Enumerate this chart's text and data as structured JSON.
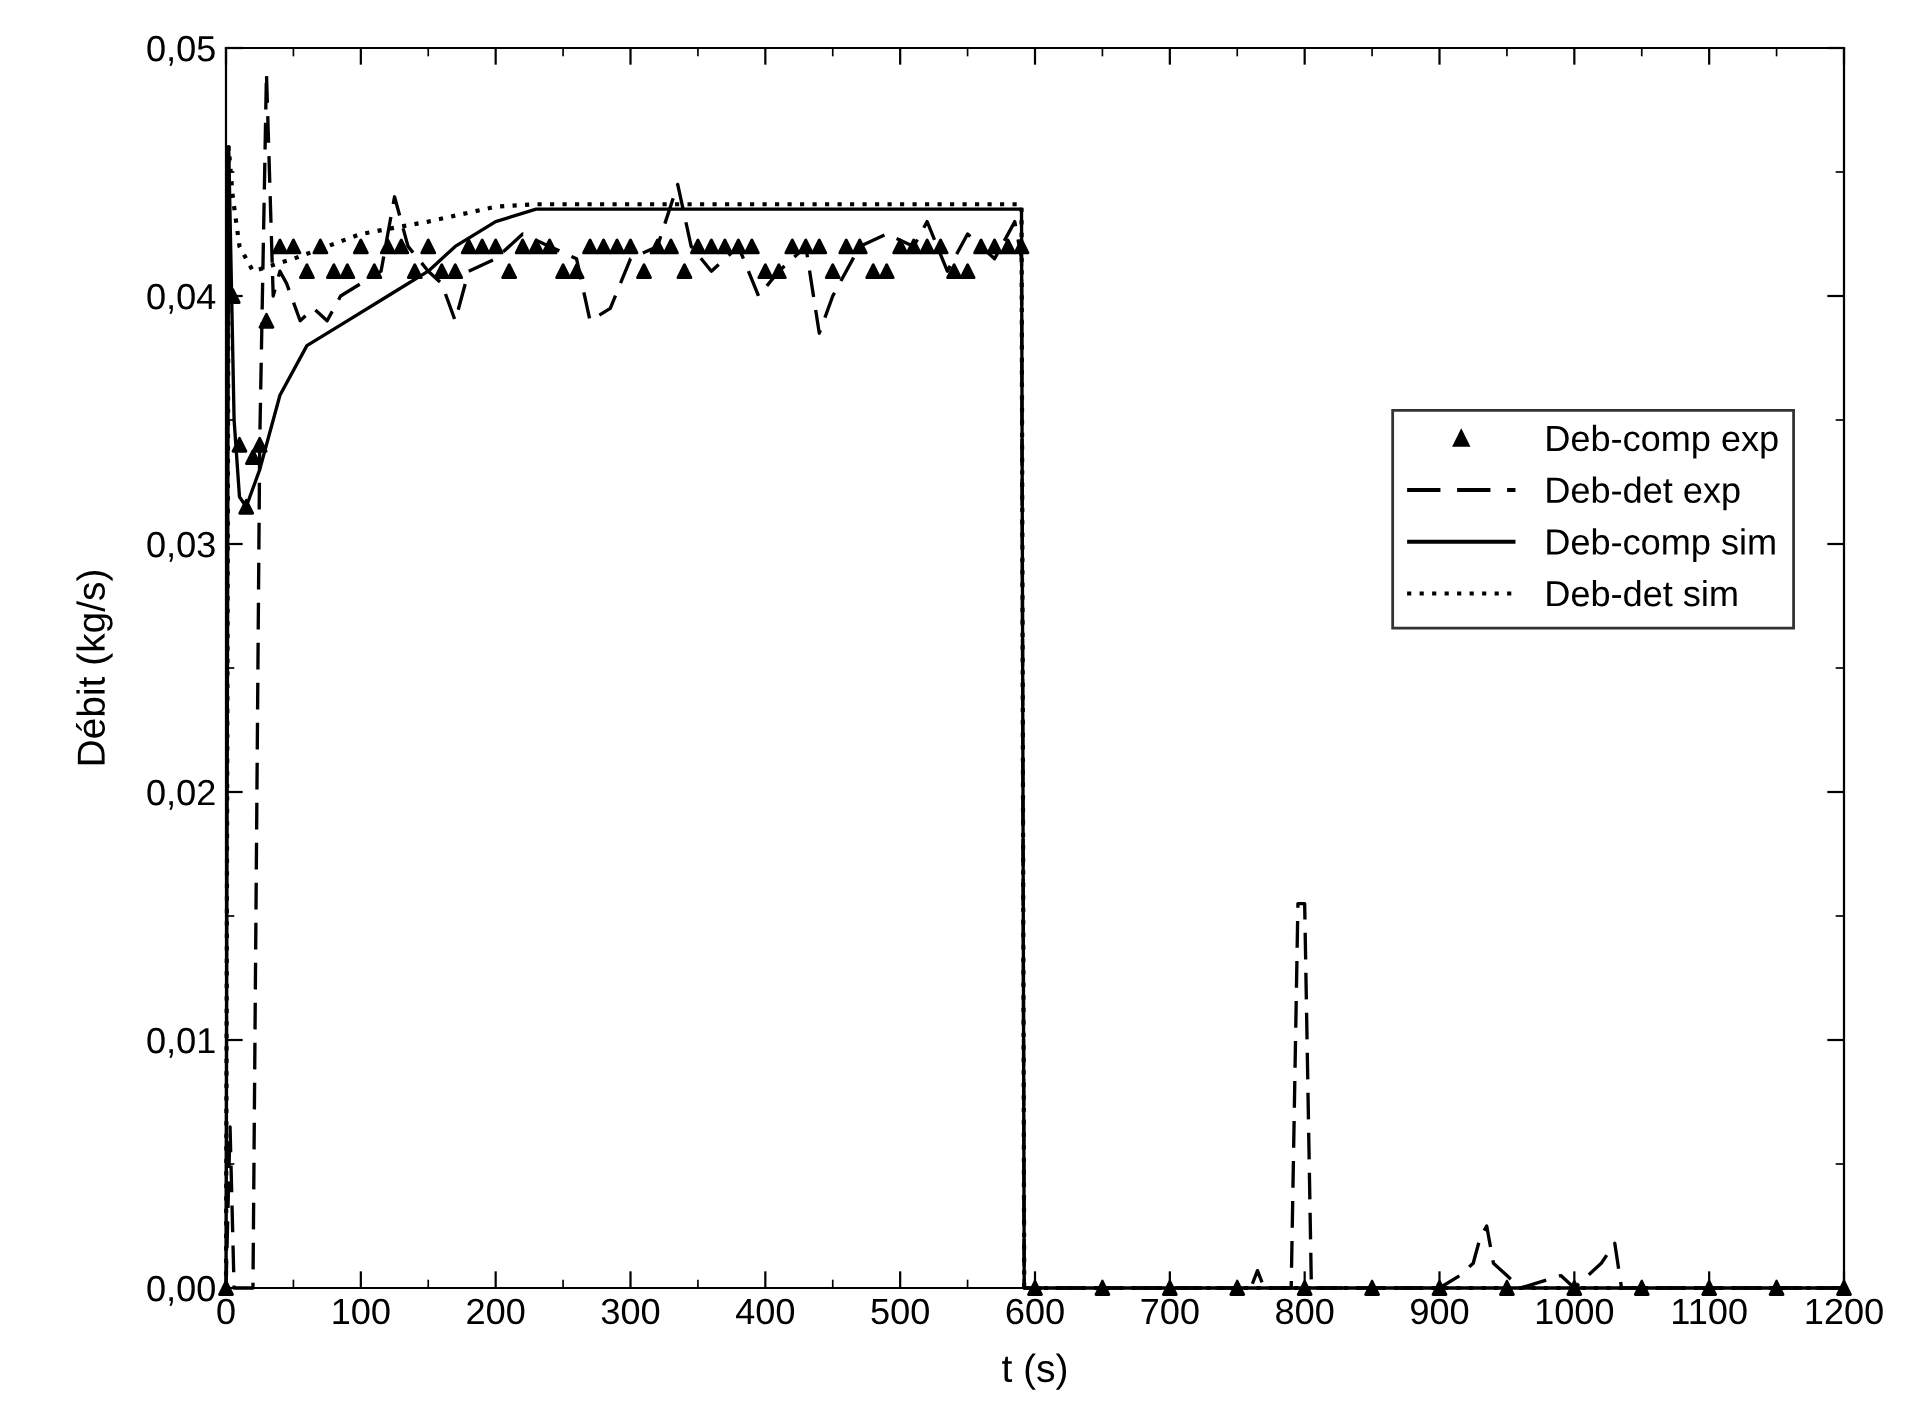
{
  "chart_data": {
    "type": "line",
    "xlabel": "t (s)",
    "ylabel": "Débit (kg/s)",
    "xlim": [
      0,
      1200
    ],
    "xticks": [
      0,
      100,
      200,
      300,
      400,
      500,
      600,
      700,
      800,
      900,
      1000,
      1100,
      1200
    ],
    "ylim": [
      0,
      0.05
    ],
    "yticks": [
      {
        "value": 0,
        "label": "0,00"
      },
      {
        "value": 0.01,
        "label": "0,01"
      },
      {
        "value": 0.02,
        "label": "0,02"
      },
      {
        "value": 0.03,
        "label": "0,03"
      },
      {
        "value": 0.04,
        "label": "0,04"
      },
      {
        "value": 0.05,
        "label": "0,05"
      }
    ],
    "grid": false,
    "legend": "right",
    "series": [
      {
        "name": "Deb-comp exp",
        "type": "scatter",
        "marker": "triangle",
        "color": "#000000",
        "x": [
          0,
          5,
          10,
          15,
          20,
          25,
          30,
          40,
          50,
          60,
          70,
          80,
          90,
          100,
          110,
          120,
          130,
          140,
          150,
          160,
          170,
          180,
          190,
          200,
          210,
          220,
          230,
          240,
          250,
          260,
          270,
          280,
          290,
          300,
          310,
          320,
          330,
          340,
          350,
          360,
          370,
          380,
          390,
          400,
          410,
          420,
          430,
          440,
          450,
          460,
          470,
          480,
          490,
          500,
          510,
          520,
          530,
          540,
          550,
          560,
          570,
          580,
          590,
          600,
          650,
          700,
          750,
          800,
          850,
          900,
          950,
          1000,
          1050,
          1100,
          1150,
          1200
        ],
        "values": [
          0,
          0.04,
          0.034,
          0.0315,
          0.0335,
          0.034,
          0.039,
          0.042,
          0.042,
          0.041,
          0.042,
          0.041,
          0.041,
          0.042,
          0.041,
          0.042,
          0.042,
          0.041,
          0.042,
          0.041,
          0.041,
          0.042,
          0.042,
          0.042,
          0.041,
          0.042,
          0.042,
          0.042,
          0.041,
          0.041,
          0.042,
          0.042,
          0.042,
          0.042,
          0.041,
          0.042,
          0.042,
          0.041,
          0.042,
          0.042,
          0.042,
          0.042,
          0.042,
          0.041,
          0.041,
          0.042,
          0.042,
          0.042,
          0.041,
          0.042,
          0.042,
          0.041,
          0.041,
          0.042,
          0.042,
          0.042,
          0.042,
          0.041,
          0.041,
          0.042,
          0.042,
          0.042,
          0.042,
          0,
          0,
          0,
          0,
          0,
          0,
          0,
          0,
          0,
          0,
          0,
          0,
          0
        ]
      },
      {
        "name": "Deb-det exp",
        "line_style": "dashed",
        "color": "#000000",
        "x": [
          0,
          3,
          6,
          20,
          25,
          30,
          35,
          40,
          45,
          55,
          65,
          75,
          85,
          100,
          115,
          125,
          135,
          150,
          160,
          170,
          180,
          200,
          220,
          240,
          260,
          270,
          285,
          300,
          320,
          335,
          345,
          360,
          380,
          395,
          410,
          430,
          440,
          450,
          470,
          490,
          510,
          520,
          535,
          550,
          570,
          585,
          590,
          592,
          650,
          760,
          765,
          770,
          790,
          795,
          800,
          805,
          900,
          915,
          925,
          930,
          935,
          940,
          950,
          960,
          990,
          1000,
          1020,
          1030,
          1035,
          1200
        ],
        "values": [
          0,
          0.0065,
          0,
          0,
          0.034,
          0.049,
          0.04,
          0.041,
          0.0405,
          0.039,
          0.0395,
          0.039,
          0.04,
          0.0405,
          0.041,
          0.044,
          0.042,
          0.041,
          0.0405,
          0.039,
          0.041,
          0.0415,
          0.0425,
          0.042,
          0.0415,
          0.039,
          0.0395,
          0.0415,
          0.042,
          0.0445,
          0.042,
          0.041,
          0.042,
          0.04,
          0.041,
          0.042,
          0.0385,
          0.04,
          0.042,
          0.0425,
          0.042,
          0.043,
          0.041,
          0.0425,
          0.0415,
          0.043,
          0.0415,
          0,
          0,
          0,
          0.0007,
          0,
          0,
          0.0155,
          0.0155,
          0,
          0,
          0.0005,
          0.001,
          0.002,
          0.0025,
          0.001,
          0.0005,
          0,
          0.0005,
          0,
          0.001,
          0.0018,
          0,
          0
        ]
      },
      {
        "name": "Deb-comp sim",
        "line_style": "solid",
        "color": "#000000",
        "x": [
          0,
          2,
          6,
          10,
          15,
          25,
          40,
          60,
          90,
          120,
          150,
          170,
          200,
          230,
          590,
          592,
          1200
        ],
        "values": [
          0,
          0.046,
          0.035,
          0.0319,
          0.0315,
          0.033,
          0.036,
          0.038,
          0.039,
          0.04,
          0.041,
          0.042,
          0.043,
          0.0435,
          0.0435,
          0,
          0
        ]
      },
      {
        "name": "Deb-det sim",
        "line_style": "dotted",
        "color": "#000000",
        "x": [
          0,
          2,
          5,
          10,
          20,
          50,
          100,
          150,
          200,
          230,
          590,
          592,
          1200
        ],
        "values": [
          0,
          0.046,
          0.044,
          0.042,
          0.041,
          0.0415,
          0.0425,
          0.043,
          0.0436,
          0.0437,
          0.0437,
          0,
          0
        ]
      }
    ]
  }
}
